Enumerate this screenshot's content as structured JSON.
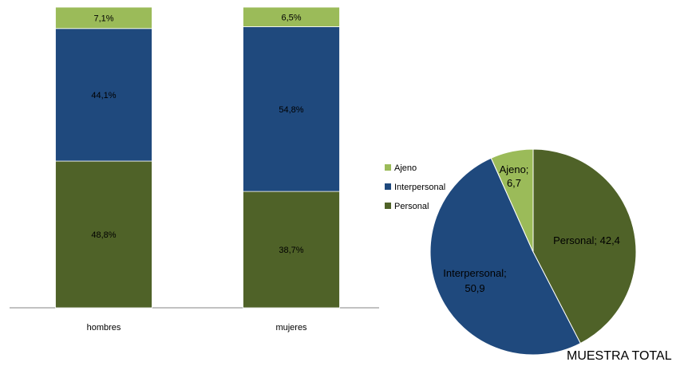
{
  "chart_data": [
    {
      "type": "bar",
      "stacked": true,
      "percent": true,
      "categories": [
        "hombres",
        "mujeres"
      ],
      "series": [
        {
          "name": "Personal",
          "values": [
            48.8,
            38.7
          ],
          "labels": [
            "48,8%",
            "38,7%"
          ],
          "color": "#4f6228"
        },
        {
          "name": "Interpersonal",
          "values": [
            44.1,
            54.8
          ],
          "labels": [
            "44,1%",
            "54,8%"
          ],
          "color": "#1f497d"
        },
        {
          "name": "Ajeno",
          "values": [
            7.1,
            6.5
          ],
          "labels": [
            "7,1%",
            "6,5%"
          ],
          "color": "#9bbb59"
        }
      ],
      "ylim": [
        0,
        100
      ],
      "grid": false
    },
    {
      "type": "pie",
      "title": "MUESTRA TOTAL",
      "slices": [
        {
          "name": "Personal",
          "value": 42.4,
          "label": "Personal; 42,4",
          "color": "#4f6228"
        },
        {
          "name": "Interpersonal",
          "value": 50.9,
          "label": "Interpersonal; 50,9",
          "color": "#1f497d"
        },
        {
          "name": "Ajeno",
          "value": 6.7,
          "label": "Ajeno; 6,7",
          "color": "#9bbb59"
        }
      ]
    }
  ],
  "legend": {
    "placement": "left-of-pie",
    "items": [
      {
        "name": "Ajeno",
        "color": "#9bbb59"
      },
      {
        "name": "Interpersonal",
        "color": "#1f497d"
      },
      {
        "name": "Personal",
        "color": "#4f6228"
      }
    ]
  }
}
